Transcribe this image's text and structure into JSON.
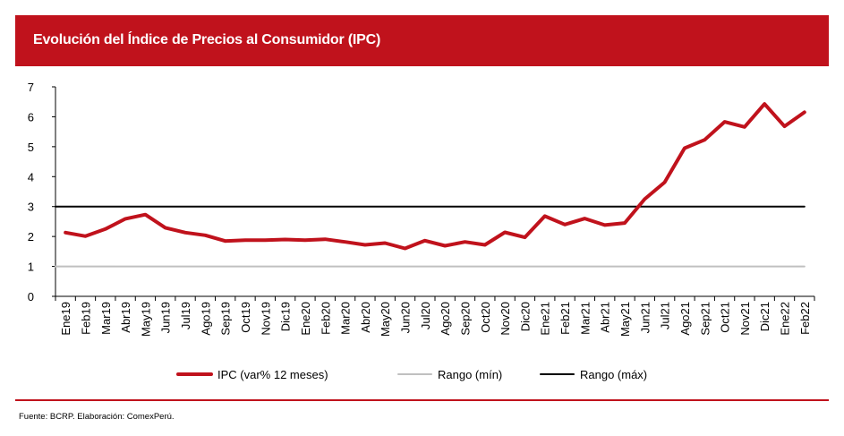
{
  "header": {
    "title": "Evolución del Índice de Precios al Consumidor (IPC)"
  },
  "footer": {
    "source": "Fuente:  BCRP. Elaboración:  ComexPerú."
  },
  "colors": {
    "brand": "#c0121c",
    "ipc": "#c0121c",
    "min": "#c0c0c0",
    "max": "#000000"
  },
  "chart_data": {
    "type": "line",
    "title": "Evolución del Índice de Precios al Consumidor (IPC)",
    "xlabel": "",
    "ylabel": "",
    "ylim": [
      0,
      7
    ],
    "yticks": [
      "0",
      "1",
      "2",
      "3",
      "4",
      "5",
      "6",
      "7"
    ],
    "grid": false,
    "legend_position": "bottom",
    "categories": [
      "Ene19",
      "Feb19",
      "Mar19",
      "Abr19",
      "May19",
      "Jun19",
      "Jul19",
      "Ago19",
      "Sep19",
      "Oct19",
      "Nov19",
      "Dic19",
      "Ene20",
      "Feb20",
      "Mar20",
      "Abr20",
      "May20",
      "Jun20",
      "Jul20",
      "Ago20",
      "Sep20",
      "Oct20",
      "Nov20",
      "Dic20",
      "Ene21",
      "Feb21",
      "Mar21",
      "Abr21",
      "May21",
      "Jun21",
      "Jul21",
      "Ago21",
      "Sep21",
      "Oct21",
      "Nov21",
      "Dic21",
      "Ene22",
      "Feb22"
    ],
    "series": [
      {
        "name": "IPC (var% 12 meses)",
        "values": [
          2.13,
          2.01,
          2.25,
          2.59,
          2.73,
          2.29,
          2.13,
          2.04,
          1.85,
          1.88,
          1.88,
          1.9,
          1.88,
          1.91,
          1.82,
          1.72,
          1.78,
          1.6,
          1.86,
          1.69,
          1.82,
          1.72,
          2.14,
          1.97,
          2.68,
          2.4,
          2.6,
          2.38,
          2.45,
          3.25,
          3.81,
          4.95,
          5.23,
          5.83,
          5.66,
          6.43,
          5.68,
          6.15
        ]
      },
      {
        "name": "Rango (mín)",
        "values": [
          1,
          1,
          1,
          1,
          1,
          1,
          1,
          1,
          1,
          1,
          1,
          1,
          1,
          1,
          1,
          1,
          1,
          1,
          1,
          1,
          1,
          1,
          1,
          1,
          1,
          1,
          1,
          1,
          1,
          1,
          1,
          1,
          1,
          1,
          1,
          1,
          1,
          1
        ]
      },
      {
        "name": "Rango (máx)",
        "values": [
          3,
          3,
          3,
          3,
          3,
          3,
          3,
          3,
          3,
          3,
          3,
          3,
          3,
          3,
          3,
          3,
          3,
          3,
          3,
          3,
          3,
          3,
          3,
          3,
          3,
          3,
          3,
          3,
          3,
          3,
          3,
          3,
          3,
          3,
          3,
          3,
          3,
          3
        ]
      }
    ]
  }
}
